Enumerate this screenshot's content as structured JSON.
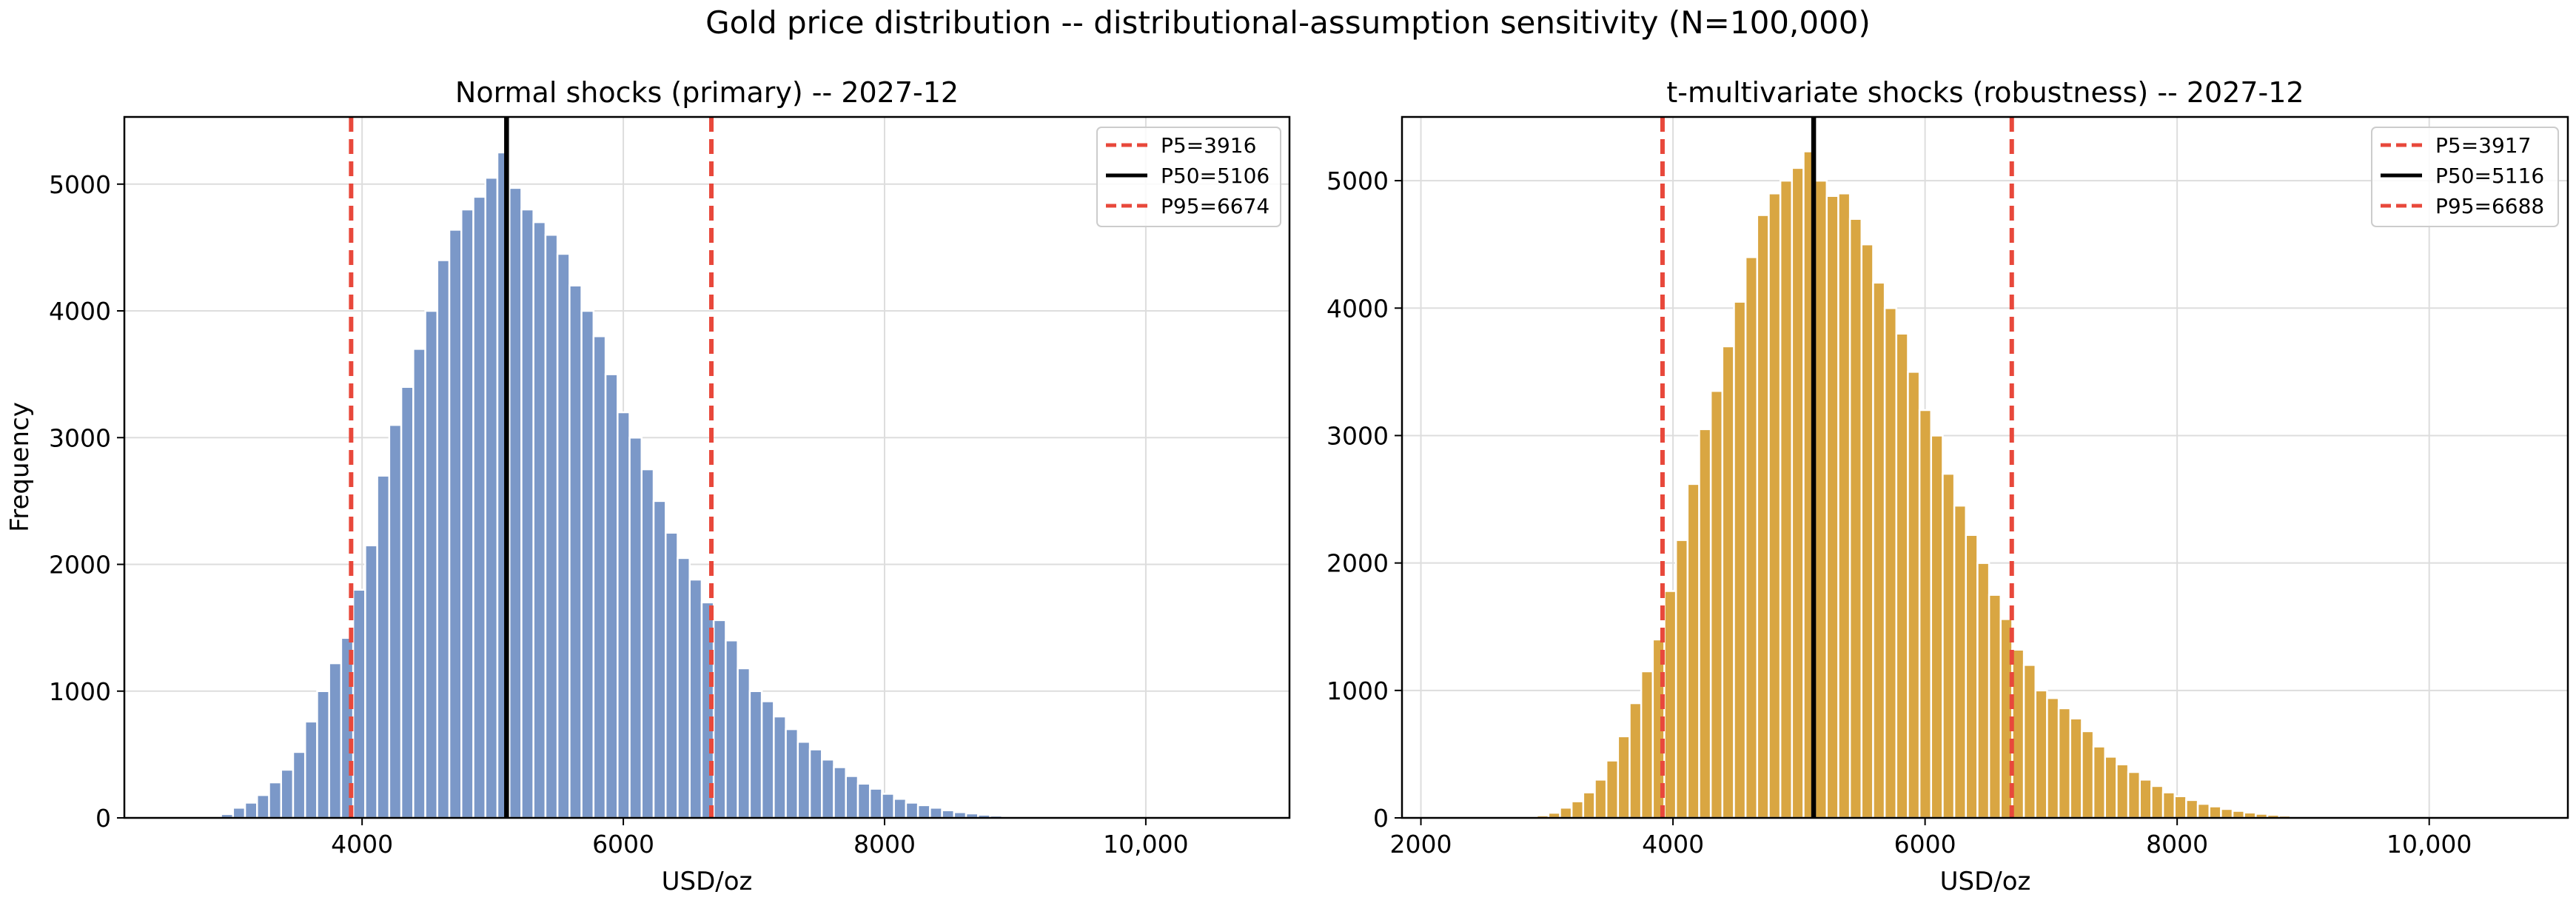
{
  "figure": {
    "suptitle": "Gold price distribution -- distributional-assumption sensitivity (N=100,000)"
  },
  "chart_data": [
    {
      "type": "bar",
      "title": "Normal shocks (primary) -- 2027-12",
      "xlabel": "USD/oz",
      "ylabel": "Frequency",
      "xlim": [
        2180,
        11100
      ],
      "ylim": [
        0,
        5530
      ],
      "xticks": [
        4000,
        6000,
        8000,
        10000
      ],
      "xtick_labels": [
        "4000",
        "6000",
        "8000",
        "10,000"
      ],
      "yticks": [
        0,
        1000,
        2000,
        3000,
        4000,
        5000
      ],
      "ytick_labels": [
        "0",
        "1000",
        "2000",
        "3000",
        "4000",
        "5000"
      ],
      "grid": true,
      "bar_color": "#7b98c8",
      "bin_width": 92,
      "bins_start": 2920,
      "values": [
        30,
        80,
        120,
        180,
        280,
        380,
        520,
        760,
        1000,
        1220,
        1420,
        1800,
        2150,
        2700,
        3100,
        3400,
        3700,
        4000,
        4400,
        4640,
        4800,
        4900,
        5050,
        5250,
        4970,
        4800,
        4700,
        4600,
        4450,
        4200,
        4000,
        3800,
        3500,
        3200,
        3000,
        2750,
        2500,
        2250,
        2050,
        1880,
        1700,
        1560,
        1400,
        1180,
        1000,
        920,
        800,
        700,
        600,
        540,
        460,
        400,
        330,
        270,
        230,
        190,
        150,
        120,
        100,
        80,
        60,
        45,
        35,
        25,
        18,
        12,
        8,
        5,
        3,
        2
      ],
      "lines": [
        {
          "label": "P5=3916",
          "x": 3916,
          "color": "#e8483b",
          "style": "dashed"
        },
        {
          "label": "P50=5106",
          "x": 5106,
          "color": "#000000",
          "style": "solid"
        },
        {
          "label": "P95=6674",
          "x": 6674,
          "color": "#e8483b",
          "style": "dashed"
        }
      ],
      "legend": "top-right"
    },
    {
      "type": "bar",
      "title": "t-multivariate shocks (robustness) -- 2027-12",
      "xlabel": "USD/oz",
      "ylabel": "",
      "xlim": [
        1850,
        11100
      ],
      "ylim": [
        0,
        5500
      ],
      "xticks": [
        2000,
        4000,
        6000,
        8000,
        10000
      ],
      "xtick_labels": [
        "2000",
        "4000",
        "6000",
        "8000",
        "10,000"
      ],
      "yticks": [
        0,
        1000,
        2000,
        3000,
        4000,
        5000
      ],
      "ytick_labels": [
        "0",
        "1000",
        "2000",
        "3000",
        "4000",
        "5000"
      ],
      "grid": true,
      "bar_color": "#d9a642",
      "bin_width": 92,
      "bins_start": 2920,
      "values": [
        20,
        40,
        80,
        130,
        200,
        300,
        450,
        640,
        900,
        1150,
        1400,
        1780,
        2180,
        2620,
        3050,
        3350,
        3700,
        4050,
        4400,
        4730,
        4900,
        5000,
        5100,
        5230,
        5000,
        4880,
        4900,
        4700,
        4500,
        4200,
        4000,
        3800,
        3500,
        3200,
        3000,
        2700,
        2450,
        2220,
        2000,
        1750,
        1560,
        1320,
        1200,
        1000,
        940,
        860,
        780,
        680,
        560,
        480,
        420,
        360,
        300,
        250,
        200,
        170,
        140,
        110,
        90,
        70,
        55,
        42,
        32,
        24,
        18,
        12,
        8,
        5,
        3,
        2
      ],
      "lines": [
        {
          "label": "P5=3917",
          "x": 3917,
          "color": "#e8483b",
          "style": "dashed"
        },
        {
          "label": "P50=5116",
          "x": 5116,
          "color": "#000000",
          "style": "solid"
        },
        {
          "label": "P95=6688",
          "x": 6688,
          "color": "#e8483b",
          "style": "dashed"
        }
      ],
      "legend": "top-right"
    }
  ]
}
